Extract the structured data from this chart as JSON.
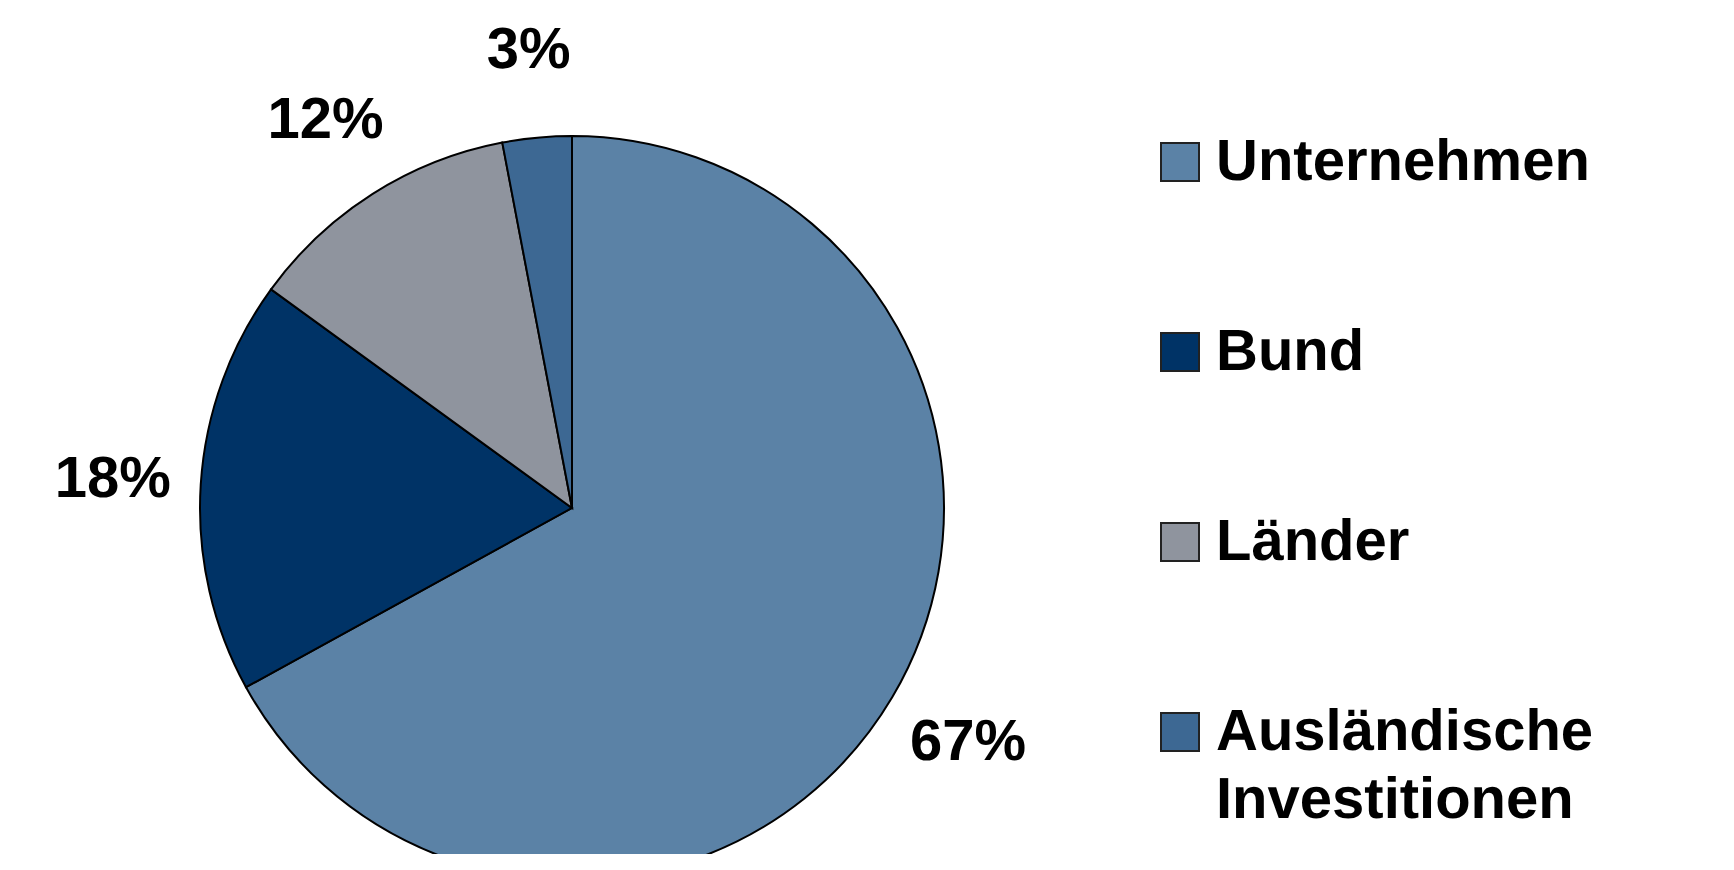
{
  "chart_data": {
    "type": "pie",
    "categories": [
      "Unternehmen",
      "Bund",
      "Länder",
      "Ausländische Investitionen"
    ],
    "values": [
      67,
      18,
      12,
      3
    ],
    "value_labels": [
      "67%",
      "18%",
      "12%",
      "3%"
    ],
    "colors": [
      "#5b82a6",
      "#003366",
      "#8f949e",
      "#3d6893"
    ],
    "legend": "right"
  }
}
